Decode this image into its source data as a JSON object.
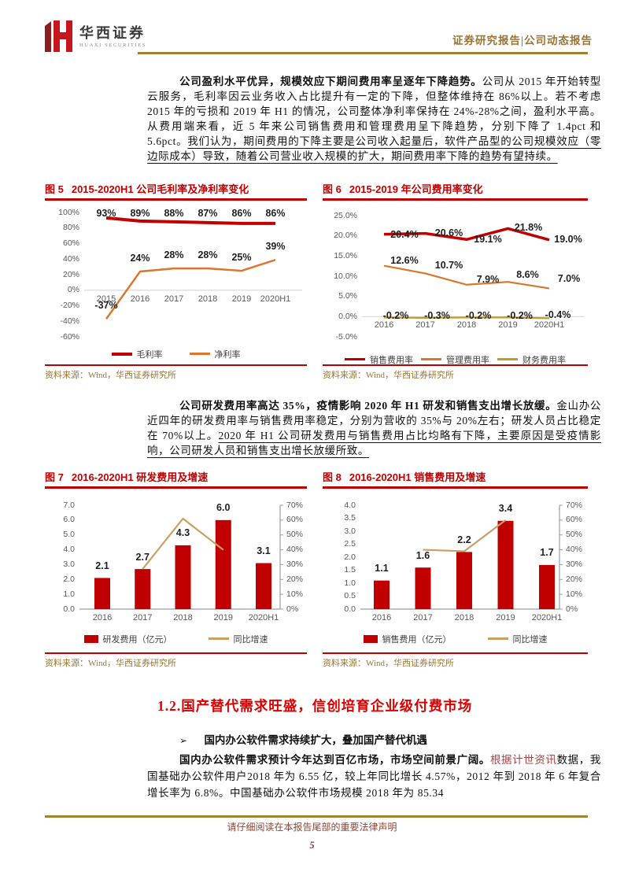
{
  "page": {
    "header": {
      "logo_cn": "华西证券",
      "logo_en": "HUAXI SECURITIES",
      "report_type": "证券研究报告|公司动态报告"
    },
    "paragraphs": {
      "p1": [
        {
          "t": "公司盈利水平优异，规模效应下期间费用率呈逐年下降趋势。",
          "b": 1
        },
        {
          "t": "公司从 2015 年开始转型云服务，毛利率因云业务收入占比提升有一定的下降，但整体维持在 86%以上。若不考虑 2015 年的亏损和 2019 年 H1 的情况，公司整体净利率保持在 24%-28%之间，盈利水平高。从费用端来看，近 5 年来公司销售费用和管理费用呈下降趋势，分别下降了 1.4pct 和 5.6pct。"
        },
        {
          "t": "我们认为，期间费用的下降主要是公司收入起量后，软件产品型的公司规模效应（零边际成本）导致，随着公司营业收入规模的扩大，期间费用率下降的趋势有望持续。",
          "u": 1
        }
      ],
      "p2": [
        {
          "t": "公司研发费用率高达 35%，疫情影响 2020 年 H1 研发和销售支出增长放缓。",
          "b": 1
        },
        {
          "t": "金山办公近四年的研发费用率与销售费用率稳定，分别为营收的 35%与 20%左右；研发人员占比稳定在 70%以上。"
        },
        {
          "t": "2020 年 H1 公司研发费用与销售费用占比均略有下降，主要原因是受疫情影响，公司研发人员和销售支出增长放缓所致。",
          "u": 1
        }
      ],
      "p3": [
        {
          "t": "国内办公软件需求预计今年达到百亿市场，市场空间前景广阔。",
          "b": 1
        },
        {
          "t": "根据计世资讯",
          "r": 1
        },
        {
          "t": "数据，我国基础办公软件用户2018 年为 6.55 亿，较上年同比增长 4.57%，2012 年到 2018 年 6 年复合增长率为 6.8%。中国基础办公软件市场规模 2018 年为 85.34"
        }
      ]
    },
    "section": {
      "heading": "1.2.国产替代需求旺盛，信创培育企业级付费市场"
    },
    "bullet": {
      "marker": "➢",
      "text": "国内办公软件需求持续扩大，叠加国产替代机遇"
    },
    "footer": {
      "disclaimer": "请仔细阅读在本报告尾部的重要法律声明",
      "page_number": "5"
    }
  },
  "brand": {
    "red": "#C8161E",
    "maroon": "#8C1D23",
    "gold": "#A6802F",
    "accent_red": "#C00000"
  },
  "chart_data": [
    {
      "id": "fig5",
      "type": "line",
      "fig_label": "图 5",
      "title": "2015-2020H1 公司毛利率及净利率变化",
      "source": "资料来源：Wind，华西证券研究所",
      "categories": [
        "2015",
        "2016",
        "2017",
        "2018",
        "2019",
        "2020H1"
      ],
      "ylim": [
        -60,
        100
      ],
      "yticks": [
        {
          "v": 100,
          "t": "100%"
        },
        {
          "v": 80,
          "t": "80%"
        },
        {
          "v": 60,
          "t": "60%"
        },
        {
          "v": 40,
          "t": "40%"
        },
        {
          "v": 20,
          "t": "20%"
        },
        {
          "v": 0,
          "t": "0%"
        },
        {
          "v": -20,
          "t": "-20%"
        },
        {
          "v": -40,
          "t": "-40%"
        },
        {
          "v": -60,
          "t": "-60%"
        }
      ],
      "series": [
        {
          "name": "毛利率",
          "color": "#C00000",
          "values": [
            93,
            89,
            88,
            87,
            86,
            86
          ],
          "labels": [
            "93%",
            "89%",
            "88%",
            "87%",
            "86%",
            "86%"
          ]
        },
        {
          "name": "净利率",
          "color": "#D9772E",
          "values": [
            -37,
            24,
            28,
            28,
            25,
            39
          ],
          "labels": [
            "-37%",
            "24%",
            "28%",
            "28%",
            "25%",
            "39%"
          ]
        }
      ]
    },
    {
      "id": "fig6",
      "type": "line",
      "fig_label": "图 6",
      "title": "2015-2019 年公司费用率变化",
      "source": "资料来源：Wind，华西证券研究所",
      "categories": [
        "2016",
        "2017",
        "2018",
        "2019",
        "2020H1"
      ],
      "ylim": [
        -5,
        25
      ],
      "yticks": [
        {
          "v": 25,
          "t": "25.0%"
        },
        {
          "v": 20,
          "t": "20.0%"
        },
        {
          "v": 15,
          "t": "15.0%"
        },
        {
          "v": 10,
          "t": "10.0%"
        },
        {
          "v": 5,
          "t": "5.0%"
        },
        {
          "v": 0,
          "t": "0.0%"
        },
        {
          "v": -5,
          "t": "-5.0%"
        }
      ],
      "series": [
        {
          "name": "销售费用率",
          "color": "#C00000",
          "values": [
            20.4,
            20.6,
            19.1,
            21.8,
            19.0
          ],
          "labels": [
            "20.4%",
            "20.6%",
            "19.1%",
            "21.8%",
            "19.0%"
          ]
        },
        {
          "name": "管理费用率",
          "color": "#D9772E",
          "values": [
            12.6,
            10.7,
            7.9,
            8.6,
            7.0
          ],
          "labels": [
            "12.6%",
            "10.7%",
            "7.9%",
            "8.6%",
            "7.0%"
          ]
        },
        {
          "name": "财务费用率",
          "color": "#C49A27",
          "values": [
            -0.2,
            -0.3,
            -0.2,
            -0.2,
            -0.4
          ],
          "labels": [
            "-0.2%",
            "-0.3%",
            "-0.2%",
            "-0.2%",
            "-0.4%"
          ]
        }
      ]
    },
    {
      "id": "fig7",
      "type": "bar-line",
      "fig_label": "图 7",
      "title": "2016-2020H1 研发费用及增速",
      "source": "资料来源：Wind，华西证券研究所",
      "categories": [
        "2016",
        "2017",
        "2018",
        "2019",
        "2020H1"
      ],
      "ylim": [
        0,
        7
      ],
      "yticks": [
        {
          "v": 7,
          "t": "7.0"
        },
        {
          "v": 6,
          "t": "6.0"
        },
        {
          "v": 5,
          "t": "5.0"
        },
        {
          "v": 4,
          "t": "4.0"
        },
        {
          "v": 3,
          "t": "3.0"
        },
        {
          "v": 2,
          "t": "2.0"
        },
        {
          "v": 1,
          "t": "1.0"
        },
        {
          "v": 0,
          "t": "0.0"
        }
      ],
      "y2lim": [
        0,
        70
      ],
      "y2ticks": [
        {
          "v": 70,
          "t": "70%"
        },
        {
          "v": 60,
          "t": "60%"
        },
        {
          "v": 50,
          "t": "50%"
        },
        {
          "v": 40,
          "t": "40%"
        },
        {
          "v": 30,
          "t": "30%"
        },
        {
          "v": 20,
          "t": "20%"
        },
        {
          "v": 10,
          "t": "10%"
        },
        {
          "v": 0,
          "t": "0%"
        }
      ],
      "bars": {
        "name": "研发费用（亿元）",
        "color": "#C00000",
        "values": [
          2.1,
          2.7,
          4.3,
          6.0,
          3.1
        ],
        "labels": [
          "2.1",
          "2.7",
          "4.3",
          "6.0",
          "3.1"
        ]
      },
      "line": {
        "name": "同比增速",
        "color": "#C9A063",
        "values": [
          null,
          27,
          61,
          40,
          null
        ]
      }
    },
    {
      "id": "fig8",
      "type": "bar-line",
      "fig_label": "图 8",
      "title": "2016-2020H1 销售费用及增速",
      "source": "资料来源：Wind，华西证券研究所",
      "categories": [
        "2016",
        "2017",
        "2018",
        "2019",
        "2020H1"
      ],
      "ylim": [
        0,
        4
      ],
      "yticks": [
        {
          "v": 4,
          "t": "4.0"
        },
        {
          "v": 3.5,
          "t": "3.5"
        },
        {
          "v": 3,
          "t": "3.0"
        },
        {
          "v": 2.5,
          "t": "2.5"
        },
        {
          "v": 2,
          "t": "2.0"
        },
        {
          "v": 1.5,
          "t": "1.5"
        },
        {
          "v": 1,
          "t": "1.0"
        },
        {
          "v": 0.5,
          "t": "0.5"
        },
        {
          "v": 0,
          "t": "0.0"
        }
      ],
      "y2lim": [
        0,
        70
      ],
      "y2ticks": [
        {
          "v": 70,
          "t": "70%"
        },
        {
          "v": 60,
          "t": "60%"
        },
        {
          "v": 50,
          "t": "50%"
        },
        {
          "v": 40,
          "t": "40%"
        },
        {
          "v": 30,
          "t": "30%"
        },
        {
          "v": 20,
          "t": "20%"
        },
        {
          "v": 10,
          "t": "10%"
        },
        {
          "v": 0,
          "t": "0%"
        }
      ],
      "bars": {
        "name": "销售费用（亿元）",
        "color": "#C00000",
        "values": [
          1.1,
          1.6,
          2.2,
          3.4,
          1.7
        ],
        "labels": [
          "1.1",
          "1.6",
          "2.2",
          "3.4",
          "1.7"
        ]
      },
      "line": {
        "name": "同比增速",
        "color": "#C9A063",
        "values": [
          null,
          40,
          39,
          60,
          null
        ]
      }
    }
  ]
}
